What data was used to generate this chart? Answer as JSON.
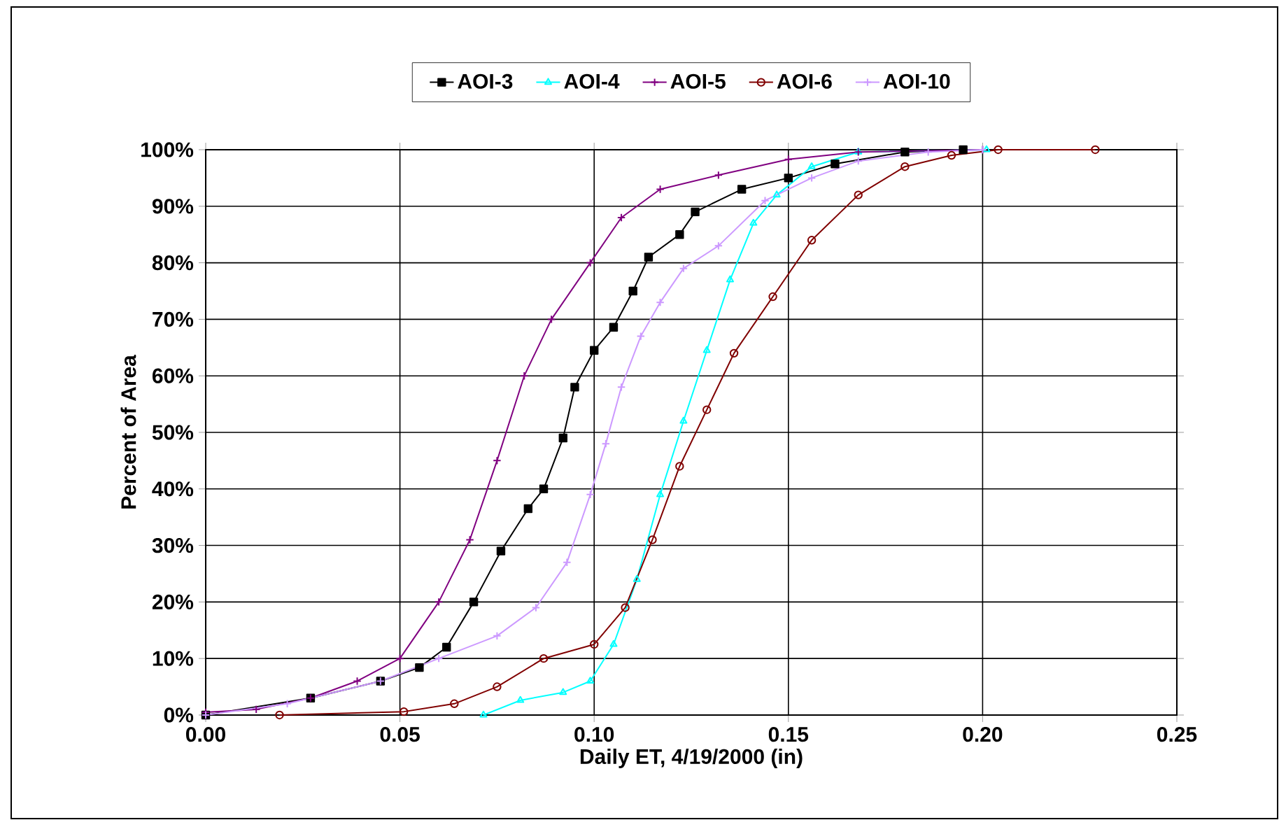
{
  "chart_data": {
    "type": "line",
    "xlabel": "Daily ET, 4/19/2000 (in)",
    "ylabel": "Percent of Area",
    "xlim": [
      0,
      0.25
    ],
    "ylim": [
      0,
      100
    ],
    "xticks": [
      {
        "value": 0,
        "label": "0.00"
      },
      {
        "value": 0.05,
        "label": "0.05"
      },
      {
        "value": 0.1,
        "label": "0.10"
      },
      {
        "value": 0.15,
        "label": "0.15"
      },
      {
        "value": 0.2,
        "label": "0.20"
      },
      {
        "value": 0.25,
        "label": "0.25"
      }
    ],
    "yticks": [
      {
        "value": 0,
        "label": "0%"
      },
      {
        "value": 10,
        "label": "10%"
      },
      {
        "value": 20,
        "label": "20%"
      },
      {
        "value": 30,
        "label": "30%"
      },
      {
        "value": 40,
        "label": "40%"
      },
      {
        "value": 50,
        "label": "50%"
      },
      {
        "value": 60,
        "label": "60%"
      },
      {
        "value": 70,
        "label": "70%"
      },
      {
        "value": 80,
        "label": "80%"
      },
      {
        "value": 90,
        "label": "90%"
      },
      {
        "value": 100,
        "label": "100%"
      }
    ],
    "grid": true,
    "legend": "top",
    "line_style": "solid",
    "series": [
      {
        "name": "AOI-3",
        "color": "#000000",
        "marker": "square",
        "x": [
          0,
          0.027,
          0.045,
          0.055,
          0.062,
          0.069,
          0.076,
          0.083,
          0.087,
          0.092,
          0.095,
          0.1,
          0.105,
          0.11,
          0.114,
          0.122,
          0.126,
          0.138,
          0.15,
          0.162,
          0.18,
          0.195
        ],
        "values": [
          0,
          3,
          6,
          8.4,
          12,
          20,
          29,
          36.5,
          40,
          49,
          58,
          64.5,
          68.6,
          75,
          81,
          85,
          89,
          93,
          95,
          97.5,
          99.6,
          100
        ]
      },
      {
        "name": "AOI-4",
        "color": "#00ffff",
        "marker": "triangle",
        "x": [
          0.0715,
          0.081,
          0.092,
          0.099,
          0.105,
          0.111,
          0.117,
          0.123,
          0.129,
          0.135,
          0.141,
          0.147,
          0.156,
          0.168,
          0.201
        ],
        "values": [
          0,
          2.6,
          4,
          6,
          12.5,
          24,
          39,
          52,
          64.5,
          77,
          87,
          92,
          97,
          99.6,
          100
        ]
      },
      {
        "name": "AOI-5",
        "color": "#800080",
        "marker": "cross",
        "x": [
          0,
          0.013,
          0.027,
          0.039,
          0.05,
          0.06,
          0.068,
          0.075,
          0.082,
          0.089,
          0.099,
          0.107,
          0.117,
          0.132,
          0.15,
          0.168,
          0.2
        ],
        "values": [
          0.5,
          1,
          3,
          6,
          10,
          20,
          31,
          45,
          60,
          70,
          80,
          88,
          93,
          95.5,
          98.3,
          99.6,
          100
        ]
      },
      {
        "name": "AOI-6",
        "color": "#800000",
        "marker": "circle",
        "x": [
          0.019,
          0.051,
          0.064,
          0.075,
          0.087,
          0.1,
          0.108,
          0.115,
          0.122,
          0.129,
          0.136,
          0.146,
          0.156,
          0.168,
          0.18,
          0.192,
          0.204,
          0.229
        ],
        "values": [
          0,
          0.6,
          2,
          5,
          10,
          12.5,
          19,
          31,
          44,
          54,
          64,
          74,
          84,
          92,
          97,
          99,
          100,
          100
        ]
      },
      {
        "name": "AOI-10",
        "color": "#cc99ff",
        "marker": "cross",
        "x": [
          0,
          0.021,
          0.045,
          0.06,
          0.075,
          0.085,
          0.093,
          0.099,
          0.103,
          0.107,
          0.112,
          0.117,
          0.123,
          0.132,
          0.144,
          0.156,
          0.168,
          0.186,
          0.2
        ],
        "values": [
          0,
          2,
          6,
          10,
          14,
          19,
          27,
          39,
          48,
          58,
          67,
          73,
          79,
          83,
          91,
          95,
          98,
          99.6,
          100
        ]
      }
    ]
  }
}
